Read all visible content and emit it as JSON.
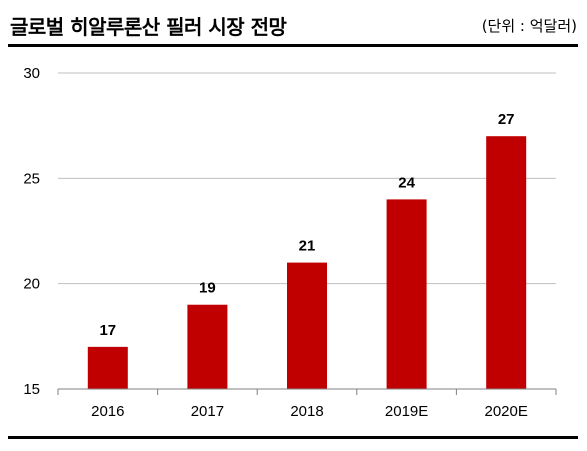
{
  "header": {
    "title": "글로벌 히알루론산 필러 시장 전망",
    "unit": "(단위 : 억달러)"
  },
  "colors": {
    "bar": "#c00000",
    "grid": "#bfbfbf",
    "axis": "#808080",
    "text": "#000000",
    "rule": "#000000"
  },
  "chart_data": {
    "type": "bar",
    "title": "글로벌 히알루론산 필러 시장 전망",
    "unit_label": "(단위 : 억달러)",
    "categories": [
      "2016",
      "2017",
      "2018",
      "2019E",
      "2020E"
    ],
    "values": [
      17,
      19,
      21,
      24,
      27
    ],
    "data_labels": [
      "17",
      "19",
      "21",
      "24",
      "27"
    ],
    "ylim": [
      15,
      30
    ],
    "yticks": [
      15,
      20,
      25,
      30
    ],
    "ytick_labels": [
      "15",
      "20",
      "25",
      "30"
    ],
    "xlabel": "",
    "ylabel": "",
    "grid": true,
    "legend": "none"
  }
}
